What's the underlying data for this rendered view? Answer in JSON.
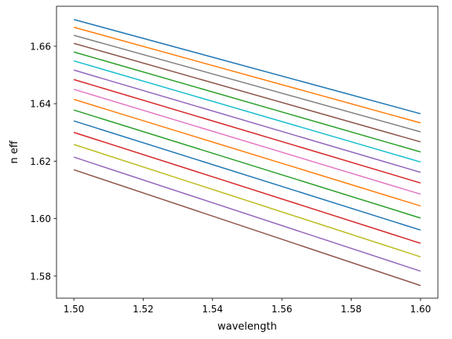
{
  "chart_data": {
    "type": "line",
    "title": "",
    "xlabel": "wavelength",
    "ylabel": "n eff",
    "xlim": [
      1.495,
      1.605
    ],
    "ylim": [
      1.5723,
      1.6739
    ],
    "grid": false,
    "legend": "none",
    "x_ticks": [
      "1.50",
      "1.52",
      "1.54",
      "1.56",
      "1.58",
      "1.60"
    ],
    "y_ticks": [
      "1.58",
      "1.60",
      "1.62",
      "1.64",
      "1.66"
    ],
    "x": [
      1.5,
      1.6
    ],
    "series": [
      {
        "color": "#1f77b4",
        "values": [
          1.6693,
          1.6365
        ]
      },
      {
        "color": "#ff7f0e",
        "values": [
          1.6666,
          1.6333
        ]
      },
      {
        "color": "#7f7f7f",
        "values": [
          1.6638,
          1.6302
        ]
      },
      {
        "color": "#8c564b",
        "values": [
          1.661,
          1.6267
        ]
      },
      {
        "color": "#2ca02c",
        "values": [
          1.658,
          1.6232
        ]
      },
      {
        "color": "#17becf",
        "values": [
          1.6549,
          1.6197
        ]
      },
      {
        "color": "#9467bd",
        "values": [
          1.6517,
          1.6161
        ]
      },
      {
        "color": "#d62728",
        "values": [
          1.6484,
          1.6124
        ]
      },
      {
        "color": "#e377c2",
        "values": [
          1.645,
          1.6085
        ]
      },
      {
        "color": "#ff7f0e",
        "values": [
          1.6415,
          1.6044
        ]
      },
      {
        "color": "#2ca02c",
        "values": [
          1.6378,
          1.6002
        ]
      },
      {
        "color": "#1f77b4",
        "values": [
          1.634,
          1.596
        ]
      },
      {
        "color": "#d62728",
        "values": [
          1.63,
          1.5914
        ]
      },
      {
        "color": "#bcbd22",
        "values": [
          1.6258,
          1.5867
        ]
      },
      {
        "color": "#9467bd",
        "values": [
          1.6214,
          1.5817
        ]
      },
      {
        "color": "#8c564b",
        "values": [
          1.617,
          1.5767
        ]
      }
    ]
  }
}
